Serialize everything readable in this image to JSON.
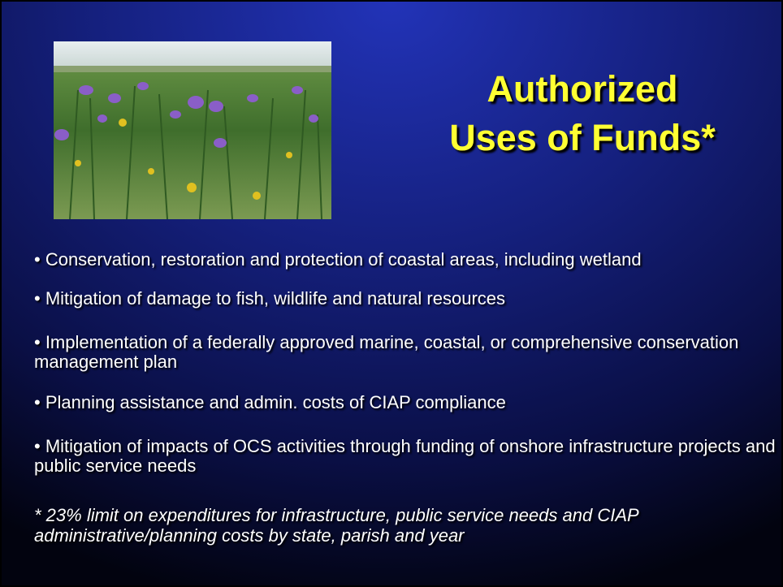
{
  "title": {
    "lines": [
      "Authorized",
      "Uses of Funds*"
    ]
  },
  "bullets": [
    "• Conservation, restoration and protection of coastal areas, including wetland",
    "• Mitigation of damage to fish, wildlife and natural resources",
    "• Implementation of a federally approved marine, coastal, or comprehensive conservation management plan",
    "• Planning assistance and admin. costs of CIAP compliance",
    "• Mitigation of impacts of OCS activities through funding of onshore infrastructure projects and public service needs"
  ],
  "footnote": "* 23% limit on expenditures for infrastructure, public service needs and CIAP administrative/planning costs by state, parish and year"
}
